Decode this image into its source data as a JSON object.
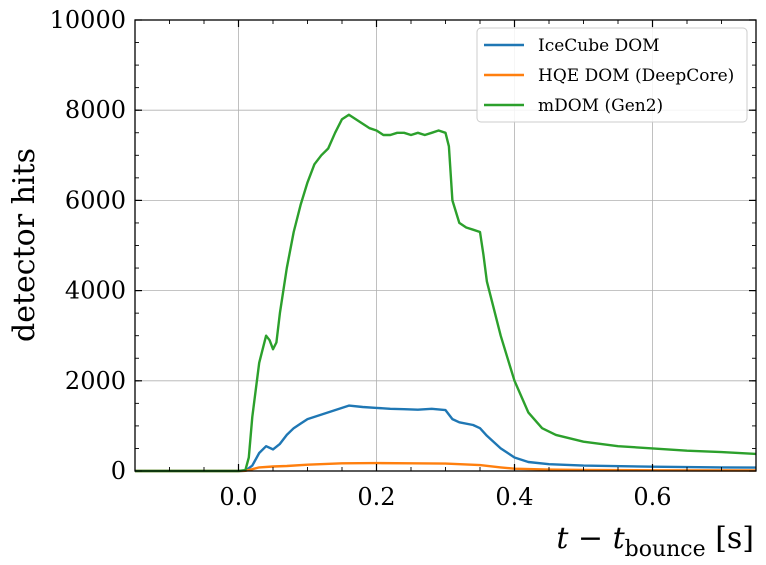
{
  "chart_data": {
    "type": "line",
    "xlabel": "t − t",
    "xlabel_sub": "bounce",
    "xlabel_unit": " [s]",
    "ylabel": "detector hits",
    "xlim": [
      -0.15,
      0.75
    ],
    "ylim": [
      0,
      10000
    ],
    "xticks": [
      0.0,
      0.2,
      0.4,
      0.6
    ],
    "xtick_labels": [
      "0.0",
      "0.2",
      "0.4",
      "0.6"
    ],
    "yticks": [
      0,
      2000,
      4000,
      6000,
      8000,
      10000
    ],
    "ytick_labels": [
      "0",
      "2000",
      "4000",
      "6000",
      "8000",
      "10000"
    ],
    "grid": true,
    "legend_position": "top-right",
    "series": [
      {
        "name": "IceCube DOM",
        "color": "#1f77b4",
        "points": [
          [
            -0.15,
            0
          ],
          [
            0.0,
            0
          ],
          [
            0.01,
            5
          ],
          [
            0.02,
            120
          ],
          [
            0.03,
            400
          ],
          [
            0.04,
            550
          ],
          [
            0.05,
            480
          ],
          [
            0.06,
            600
          ],
          [
            0.07,
            800
          ],
          [
            0.08,
            950
          ],
          [
            0.09,
            1050
          ],
          [
            0.1,
            1150
          ],
          [
            0.12,
            1250
          ],
          [
            0.14,
            1350
          ],
          [
            0.16,
            1450
          ],
          [
            0.18,
            1420
          ],
          [
            0.2,
            1400
          ],
          [
            0.22,
            1380
          ],
          [
            0.24,
            1370
          ],
          [
            0.26,
            1360
          ],
          [
            0.28,
            1380
          ],
          [
            0.3,
            1350
          ],
          [
            0.31,
            1150
          ],
          [
            0.32,
            1080
          ],
          [
            0.34,
            1020
          ],
          [
            0.35,
            950
          ],
          [
            0.36,
            780
          ],
          [
            0.38,
            500
          ],
          [
            0.4,
            300
          ],
          [
            0.42,
            200
          ],
          [
            0.45,
            150
          ],
          [
            0.5,
            120
          ],
          [
            0.6,
            95
          ],
          [
            0.7,
            80
          ],
          [
            0.75,
            75
          ]
        ]
      },
      {
        "name": "HQE DOM (DeepCore)",
        "color": "#ff7f0e",
        "points": [
          [
            -0.15,
            0
          ],
          [
            0.0,
            0
          ],
          [
            0.01,
            5
          ],
          [
            0.02,
            40
          ],
          [
            0.03,
            80
          ],
          [
            0.05,
            100
          ],
          [
            0.07,
            110
          ],
          [
            0.1,
            140
          ],
          [
            0.15,
            170
          ],
          [
            0.2,
            175
          ],
          [
            0.25,
            170
          ],
          [
            0.3,
            165
          ],
          [
            0.35,
            130
          ],
          [
            0.38,
            80
          ],
          [
            0.4,
            50
          ],
          [
            0.45,
            30
          ],
          [
            0.5,
            22
          ],
          [
            0.6,
            15
          ],
          [
            0.75,
            12
          ]
        ]
      },
      {
        "name": "mDOM (Gen2)",
        "color": "#2ca02c",
        "points": [
          [
            -0.15,
            0
          ],
          [
            0.0,
            0
          ],
          [
            0.01,
            20
          ],
          [
            0.015,
            300
          ],
          [
            0.02,
            1200
          ],
          [
            0.03,
            2400
          ],
          [
            0.04,
            3000
          ],
          [
            0.045,
            2900
          ],
          [
            0.05,
            2700
          ],
          [
            0.055,
            2850
          ],
          [
            0.06,
            3500
          ],
          [
            0.07,
            4500
          ],
          [
            0.08,
            5300
          ],
          [
            0.09,
            5900
          ],
          [
            0.1,
            6400
          ],
          [
            0.11,
            6800
          ],
          [
            0.12,
            7000
          ],
          [
            0.13,
            7150
          ],
          [
            0.14,
            7500
          ],
          [
            0.15,
            7800
          ],
          [
            0.16,
            7900
          ],
          [
            0.17,
            7800
          ],
          [
            0.18,
            7700
          ],
          [
            0.19,
            7600
          ],
          [
            0.2,
            7550
          ],
          [
            0.21,
            7450
          ],
          [
            0.22,
            7450
          ],
          [
            0.23,
            7500
          ],
          [
            0.24,
            7500
          ],
          [
            0.25,
            7450
          ],
          [
            0.26,
            7500
          ],
          [
            0.27,
            7450
          ],
          [
            0.28,
            7500
          ],
          [
            0.29,
            7550
          ],
          [
            0.3,
            7500
          ],
          [
            0.305,
            7200
          ],
          [
            0.31,
            6000
          ],
          [
            0.32,
            5500
          ],
          [
            0.33,
            5400
          ],
          [
            0.34,
            5350
          ],
          [
            0.35,
            5300
          ],
          [
            0.355,
            4800
          ],
          [
            0.36,
            4200
          ],
          [
            0.37,
            3600
          ],
          [
            0.38,
            3000
          ],
          [
            0.39,
            2500
          ],
          [
            0.4,
            2000
          ],
          [
            0.42,
            1300
          ],
          [
            0.44,
            950
          ],
          [
            0.46,
            800
          ],
          [
            0.5,
            650
          ],
          [
            0.55,
            550
          ],
          [
            0.6,
            500
          ],
          [
            0.65,
            450
          ],
          [
            0.7,
            420
          ],
          [
            0.75,
            380
          ]
        ]
      }
    ]
  }
}
